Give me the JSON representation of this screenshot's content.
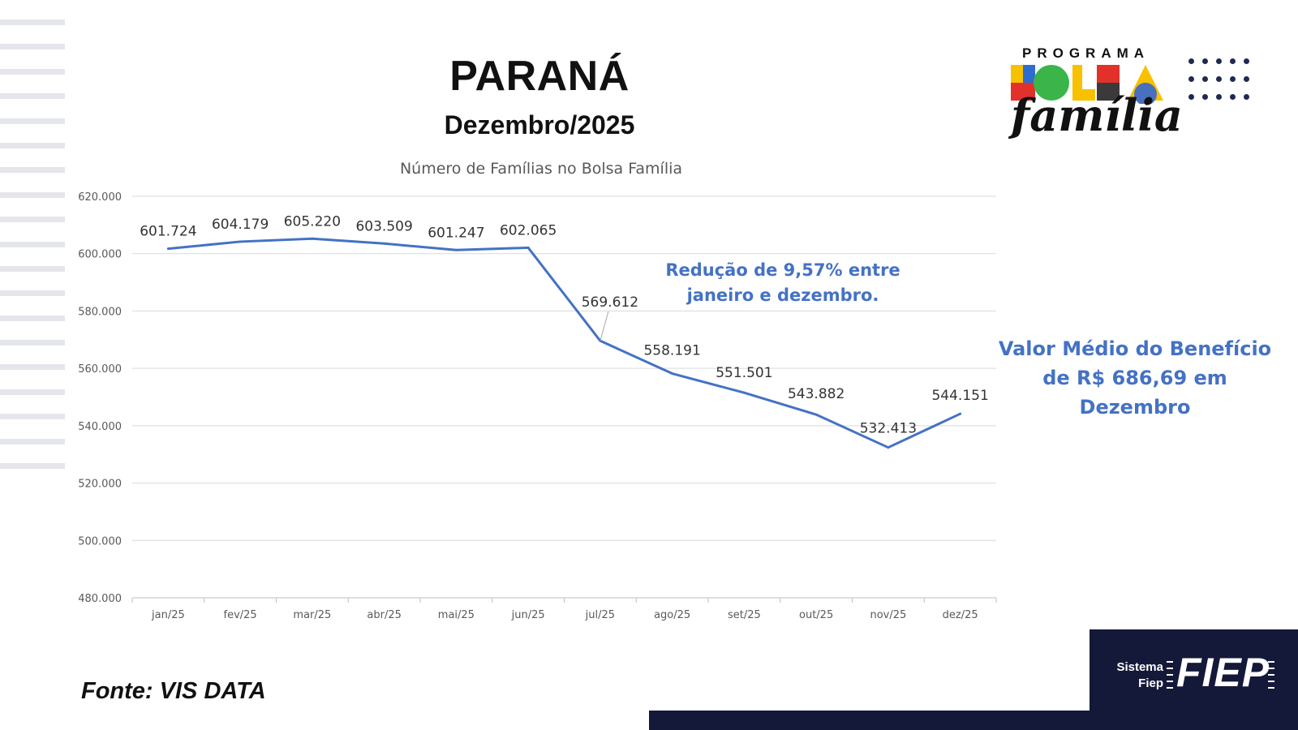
{
  "header": {
    "title": "PARANÁ",
    "subtitle": "Dezembro/2025"
  },
  "logo": {
    "programa": "PROGRAMA",
    "bolsa": "BOLSA",
    "familia": "família"
  },
  "chart_data": {
    "type": "line",
    "title": "Número de Famílias no Bolsa Família",
    "categories": [
      "jan/25",
      "fev/25",
      "mar/25",
      "abr/25",
      "mai/25",
      "jun/25",
      "jul/25",
      "ago/25",
      "set/25",
      "out/25",
      "nov/25",
      "dez/25"
    ],
    "series": [
      {
        "values": [
          601724,
          604179,
          605220,
          603509,
          601247,
          602065,
          569612,
          558191,
          551501,
          543882,
          532413,
          544151
        ],
        "labels": [
          "601.724",
          "604.179",
          "605.220",
          "603.509",
          "601.247",
          "602.065",
          "569.612",
          "558.191",
          "551.501",
          "543.882",
          "532.413",
          "544.151"
        ],
        "color": "#4472c4"
      }
    ],
    "ylim": [
      480000,
      620000
    ],
    "yticks": [
      480000,
      500000,
      520000,
      540000,
      560000,
      580000,
      600000,
      620000
    ],
    "ytick_labels": [
      "480.000",
      "500.000",
      "520.000",
      "540.000",
      "560.000",
      "580.000",
      "600.000",
      "620.000"
    ],
    "grid": true,
    "legend": "none"
  },
  "annotations": {
    "reduction_line1": "Redução de 9,57% entre",
    "reduction_line2": "janeiro e dezembro.",
    "benefit_line1": "Valor Médio do Benefício",
    "benefit_line2": "de R$ 686,69 em Dezembro"
  },
  "source": "Fonte: VIS DATA",
  "brand": {
    "sistema_line1": "Sistema",
    "sistema_line2": "Fiep",
    "fiep": "FIEP",
    "footer_color": "#14193a"
  }
}
